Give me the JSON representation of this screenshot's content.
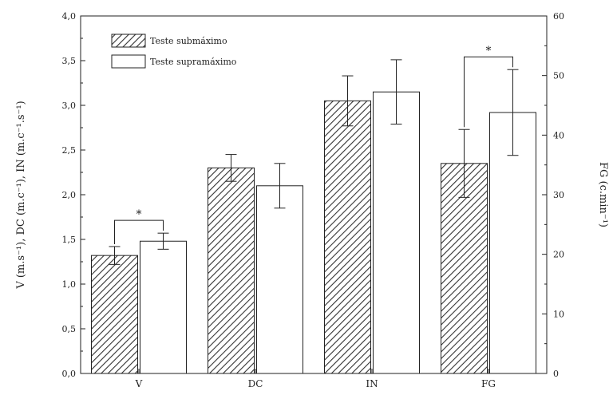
{
  "chart_data": {
    "type": "bar",
    "categories": [
      "V",
      "DC",
      "IN",
      "FG"
    ],
    "series": [
      {
        "name": "Teste submáximo",
        "values": [
          1.32,
          2.3,
          3.05,
          2.35
        ],
        "errors": [
          0.1,
          0.15,
          0.28,
          0.38
        ],
        "pattern": "hatched"
      },
      {
        "name": "Teste supramáximo",
        "values": [
          1.48,
          2.1,
          3.15,
          2.92
        ],
        "errors": [
          0.09,
          0.25,
          0.36,
          0.48
        ],
        "pattern": "open"
      }
    ],
    "ylabel_left": "V (m.s⁻¹), DC (m.c⁻¹), IN (m.c⁻¹.s⁻¹)",
    "ylabel_right": "FG (c.min⁻¹)",
    "ylim_left": [
      0,
      4
    ],
    "ylim_right": [
      0,
      60
    ],
    "yticks_left": [
      "0,0",
      "0,5",
      "1,0",
      "1,5",
      "2,0",
      "2,5",
      "3,0",
      "3,5",
      "4,0"
    ],
    "yticks_right": [
      "0",
      "10",
      "20",
      "30",
      "40",
      "50",
      "60"
    ],
    "significance": [
      {
        "category": "V",
        "marker": "*"
      },
      {
        "category": "FG",
        "marker": "*"
      }
    ],
    "legend_position": "top-left",
    "grid": false,
    "colors": {
      "bar_fill_open": "#ffffff",
      "hatch": "#333333",
      "axis": "#222222"
    }
  }
}
